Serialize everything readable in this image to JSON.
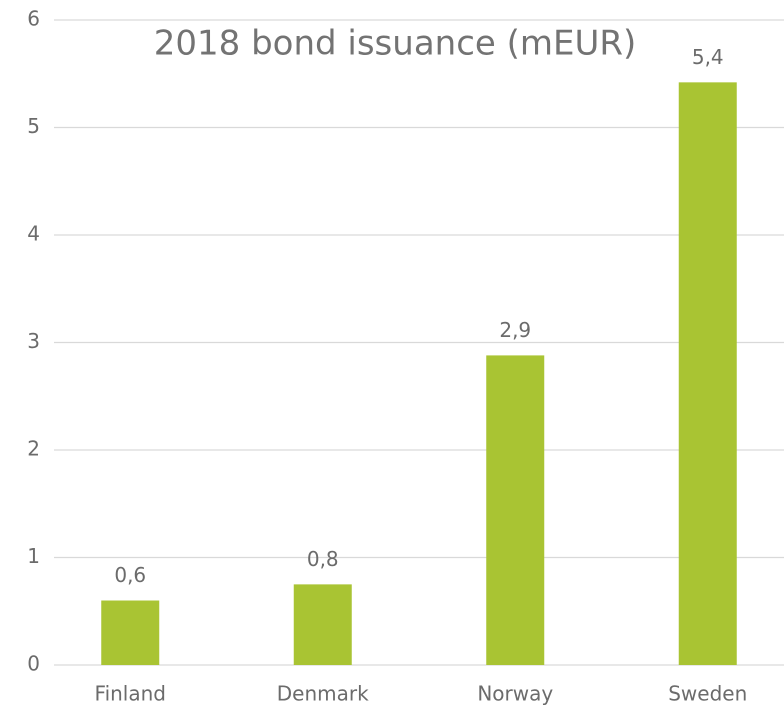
{
  "chart_data": {
    "type": "bar",
    "title": "2018 bond issuance (mEUR)",
    "categories": [
      "Finland",
      "Denmark",
      "Norway",
      "Sweden"
    ],
    "values": [
      0.6,
      0.75,
      2.88,
      5.42
    ],
    "value_labels": [
      "0,6",
      "0,8",
      "2,9",
      "5,4"
    ],
    "color": "#a9c433",
    "ylim": [
      0,
      6
    ],
    "yticks": [
      0,
      1,
      2,
      3,
      4,
      5,
      6
    ],
    "grid": true
  }
}
